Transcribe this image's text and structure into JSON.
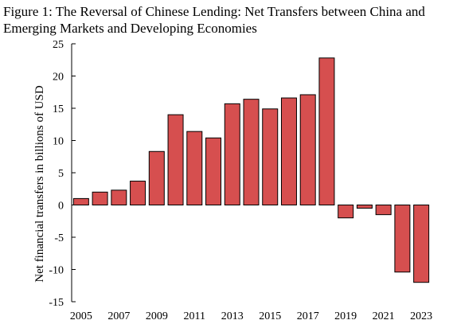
{
  "chart_data": {
    "type": "bar",
    "title": "Figure 1: The Reversal of Chinese Lending: Net Transfers between China and Emerging Markets and Developing Economies",
    "xlabel": "",
    "ylabel": "Net financial transfers in billions of USD",
    "ylim": [
      -15,
      25
    ],
    "yticks": [
      25,
      20,
      15,
      10,
      5,
      0,
      -5,
      -10,
      -15
    ],
    "xtick_labels": [
      "2005",
      "2007",
      "2009",
      "2011",
      "2013",
      "2015",
      "2017",
      "2019",
      "2021",
      "2023"
    ],
    "categories": [
      "2005",
      "2006",
      "2007",
      "2008",
      "2009",
      "2010",
      "2011",
      "2012",
      "2013",
      "2014",
      "2015",
      "2016",
      "2017",
      "2018",
      "2019",
      "2020",
      "2021",
      "2022",
      "2023"
    ],
    "values": [
      1.0,
      2.0,
      2.3,
      3.7,
      8.3,
      14.0,
      11.4,
      10.4,
      15.7,
      16.4,
      14.9,
      16.6,
      17.1,
      22.8,
      -2.0,
      -0.5,
      -1.5,
      -10.4,
      -12.0
    ],
    "bar_color": "#d64f4f",
    "bar_edge_color": "#000000",
    "grid": false,
    "legend": "none"
  }
}
